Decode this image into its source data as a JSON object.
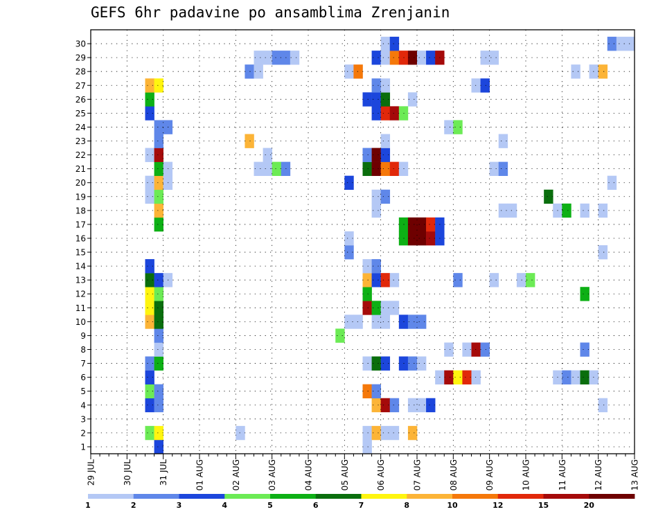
{
  "chart_data": {
    "type": "heatmap",
    "title": "GEFS 6hr padavine po ansamblima Zrenjanin",
    "xlabel": "",
    "ylabel": "",
    "y_categories": [
      "1",
      "2",
      "3",
      "4",
      "5",
      "6",
      "7",
      "8",
      "9",
      "10",
      "11",
      "12",
      "13",
      "14",
      "15",
      "16",
      "17",
      "18",
      "19",
      "20",
      "21",
      "22",
      "23",
      "24",
      "25",
      "26",
      "27",
      "28",
      "29",
      "30"
    ],
    "x_tick_labels": [
      "29 JUL",
      "30 JUL",
      "31 JUL",
      "01 AUG",
      "02 AUG",
      "03 AUG",
      "04 AUG",
      "05 AUG",
      "06 AUG",
      "07 AUG",
      "08 AUG",
      "09 AUG",
      "10 AUG",
      "11 AUG",
      "12 AUG",
      "13 AUG"
    ],
    "x_range_steps": [
      0,
      60
    ],
    "steps_per_day": 4,
    "grid": true,
    "legend": {
      "placement": "bottom",
      "labels": [
        "1",
        "2",
        "3",
        "4",
        "5",
        "6",
        "7",
        "8",
        "10",
        "12",
        "15",
        "20"
      ],
      "colors": [
        "#b4c8f5",
        "#5f87e9",
        "#1c46dc",
        "#6ceb55",
        "#0db015",
        "#0a6e0d",
        "#fff50f",
        "#fcb437",
        "#f5780a",
        "#e1280a",
        "#a50a0a",
        "#6e0000"
      ]
    },
    "cells": [
      {
        "m": 1,
        "s": 7,
        "c": 2
      },
      {
        "m": 1,
        "s": 30,
        "c": 0
      },
      {
        "m": 2,
        "s": 6,
        "c": 3
      },
      {
        "m": 2,
        "s": 7,
        "c": 6
      },
      {
        "m": 2,
        "s": 16,
        "c": 0
      },
      {
        "m": 2,
        "s": 30,
        "c": 0
      },
      {
        "m": 2,
        "s": 31,
        "c": 7
      },
      {
        "m": 2,
        "s": 32,
        "c": 0
      },
      {
        "m": 2,
        "s": 33,
        "c": 0
      },
      {
        "m": 2,
        "s": 35,
        "c": 7
      },
      {
        "m": 4,
        "s": 6,
        "c": 2
      },
      {
        "m": 4,
        "s": 7,
        "c": 1
      },
      {
        "m": 4,
        "s": 31,
        "c": 7
      },
      {
        "m": 4,
        "s": 32,
        "c": 10
      },
      {
        "m": 4,
        "s": 33,
        "c": 1
      },
      {
        "m": 4,
        "s": 35,
        "c": 0
      },
      {
        "m": 4,
        "s": 36,
        "c": 0
      },
      {
        "m": 4,
        "s": 37,
        "c": 2
      },
      {
        "m": 4,
        "s": 56,
        "c": 0
      },
      {
        "m": 5,
        "s": 6,
        "c": 3
      },
      {
        "m": 5,
        "s": 7,
        "c": 1
      },
      {
        "m": 5,
        "s": 30,
        "c": 8
      },
      {
        "m": 5,
        "s": 31,
        "c": 1
      },
      {
        "m": 6,
        "s": 6,
        "c": 2
      },
      {
        "m": 6,
        "s": 38,
        "c": 0
      },
      {
        "m": 6,
        "s": 39,
        "c": 10
      },
      {
        "m": 6,
        "s": 40,
        "c": 6
      },
      {
        "m": 6,
        "s": 41,
        "c": 9
      },
      {
        "m": 6,
        "s": 42,
        "c": 0
      },
      {
        "m": 6,
        "s": 51,
        "c": 0
      },
      {
        "m": 6,
        "s": 52,
        "c": 1
      },
      {
        "m": 6,
        "s": 53,
        "c": 0
      },
      {
        "m": 6,
        "s": 54,
        "c": 5
      },
      {
        "m": 6,
        "s": 55,
        "c": 0
      },
      {
        "m": 7,
        "s": 6,
        "c": 1
      },
      {
        "m": 7,
        "s": 7,
        "c": 4
      },
      {
        "m": 7,
        "s": 30,
        "c": 0
      },
      {
        "m": 7,
        "s": 31,
        "c": 5
      },
      {
        "m": 7,
        "s": 32,
        "c": 2
      },
      {
        "m": 7,
        "s": 34,
        "c": 2
      },
      {
        "m": 7,
        "s": 35,
        "c": 1
      },
      {
        "m": 7,
        "s": 36,
        "c": 0
      },
      {
        "m": 8,
        "s": 7,
        "c": 0
      },
      {
        "m": 8,
        "s": 39,
        "c": 0
      },
      {
        "m": 8,
        "s": 41,
        "c": 0
      },
      {
        "m": 8,
        "s": 42,
        "c": 10
      },
      {
        "m": 8,
        "s": 43,
        "c": 1
      },
      {
        "m": 8,
        "s": 54,
        "c": 1
      },
      {
        "m": 9,
        "s": 7,
        "c": 1
      },
      {
        "m": 9,
        "s": 27,
        "c": 3
      },
      {
        "m": 10,
        "s": 6,
        "c": 7
      },
      {
        "m": 10,
        "s": 7,
        "c": 5
      },
      {
        "m": 10,
        "s": 28,
        "c": 0
      },
      {
        "m": 10,
        "s": 29,
        "c": 0
      },
      {
        "m": 10,
        "s": 31,
        "c": 0
      },
      {
        "m": 10,
        "s": 32,
        "c": 0
      },
      {
        "m": 10,
        "s": 34,
        "c": 2
      },
      {
        "m": 10,
        "s": 35,
        "c": 1
      },
      {
        "m": 10,
        "s": 36,
        "c": 1
      },
      {
        "m": 11,
        "s": 6,
        "c": 6
      },
      {
        "m": 11,
        "s": 7,
        "c": 5
      },
      {
        "m": 11,
        "s": 30,
        "c": 10
      },
      {
        "m": 11,
        "s": 31,
        "c": 4
      },
      {
        "m": 11,
        "s": 32,
        "c": 0
      },
      {
        "m": 11,
        "s": 33,
        "c": 0
      },
      {
        "m": 12,
        "s": 6,
        "c": 6
      },
      {
        "m": 12,
        "s": 7,
        "c": 3
      },
      {
        "m": 12,
        "s": 30,
        "c": 4
      },
      {
        "m": 12,
        "s": 54,
        "c": 4
      },
      {
        "m": 13,
        "s": 6,
        "c": 5
      },
      {
        "m": 13,
        "s": 7,
        "c": 2
      },
      {
        "m": 13,
        "s": 8,
        "c": 0
      },
      {
        "m": 13,
        "s": 30,
        "c": 7
      },
      {
        "m": 13,
        "s": 31,
        "c": 2
      },
      {
        "m": 13,
        "s": 32,
        "c": 9
      },
      {
        "m": 13,
        "s": 33,
        "c": 0
      },
      {
        "m": 13,
        "s": 40,
        "c": 1
      },
      {
        "m": 13,
        "s": 44,
        "c": 0
      },
      {
        "m": 13,
        "s": 47,
        "c": 0
      },
      {
        "m": 13,
        "s": 48,
        "c": 3
      },
      {
        "m": 14,
        "s": 6,
        "c": 2
      },
      {
        "m": 14,
        "s": 30,
        "c": 0
      },
      {
        "m": 14,
        "s": 31,
        "c": 1
      },
      {
        "m": 15,
        "s": 28,
        "c": 1
      },
      {
        "m": 15,
        "s": 56,
        "c": 0
      },
      {
        "m": 16,
        "s": 28,
        "c": 0
      },
      {
        "m": 16,
        "s": 34,
        "c": 4
      },
      {
        "m": 16,
        "s": 35,
        "c": 11
      },
      {
        "m": 16,
        "s": 36,
        "c": 11
      },
      {
        "m": 16,
        "s": 37,
        "c": 10
      },
      {
        "m": 16,
        "s": 38,
        "c": 2
      },
      {
        "m": 17,
        "s": 7,
        "c": 4
      },
      {
        "m": 17,
        "s": 34,
        "c": 4
      },
      {
        "m": 17,
        "s": 35,
        "c": 11
      },
      {
        "m": 17,
        "s": 36,
        "c": 11
      },
      {
        "m": 17,
        "s": 37,
        "c": 9
      },
      {
        "m": 17,
        "s": 38,
        "c": 2
      },
      {
        "m": 18,
        "s": 7,
        "c": 7
      },
      {
        "m": 18,
        "s": 31,
        "c": 0
      },
      {
        "m": 18,
        "s": 45,
        "c": 0
      },
      {
        "m": 18,
        "s": 46,
        "c": 0
      },
      {
        "m": 18,
        "s": 51,
        "c": 0
      },
      {
        "m": 18,
        "s": 52,
        "c": 4
      },
      {
        "m": 18,
        "s": 54,
        "c": 0
      },
      {
        "m": 18,
        "s": 56,
        "c": 0
      },
      {
        "m": 19,
        "s": 6,
        "c": 0
      },
      {
        "m": 19,
        "s": 7,
        "c": 3
      },
      {
        "m": 19,
        "s": 31,
        "c": 0
      },
      {
        "m": 19,
        "s": 32,
        "c": 1
      },
      {
        "m": 19,
        "s": 50,
        "c": 5
      },
      {
        "m": 20,
        "s": 6,
        "c": 0
      },
      {
        "m": 20,
        "s": 7,
        "c": 7
      },
      {
        "m": 20,
        "s": 8,
        "c": 0
      },
      {
        "m": 20,
        "s": 28,
        "c": 2
      },
      {
        "m": 20,
        "s": 57,
        "c": 0
      },
      {
        "m": 21,
        "s": 7,
        "c": 4
      },
      {
        "m": 21,
        "s": 8,
        "c": 0
      },
      {
        "m": 21,
        "s": 18,
        "c": 0
      },
      {
        "m": 21,
        "s": 19,
        "c": 0
      },
      {
        "m": 21,
        "s": 20,
        "c": 3
      },
      {
        "m": 21,
        "s": 21,
        "c": 1
      },
      {
        "m": 21,
        "s": 30,
        "c": 5
      },
      {
        "m": 21,
        "s": 31,
        "c": 11
      },
      {
        "m": 21,
        "s": 32,
        "c": 8
      },
      {
        "m": 21,
        "s": 33,
        "c": 9
      },
      {
        "m": 21,
        "s": 34,
        "c": 0
      },
      {
        "m": 21,
        "s": 44,
        "c": 0
      },
      {
        "m": 21,
        "s": 45,
        "c": 1
      },
      {
        "m": 22,
        "s": 6,
        "c": 0
      },
      {
        "m": 22,
        "s": 7,
        "c": 10
      },
      {
        "m": 22,
        "s": 19,
        "c": 0
      },
      {
        "m": 22,
        "s": 30,
        "c": 1
      },
      {
        "m": 22,
        "s": 31,
        "c": 11
      },
      {
        "m": 22,
        "s": 32,
        "c": 2
      },
      {
        "m": 23,
        "s": 7,
        "c": 1
      },
      {
        "m": 23,
        "s": 17,
        "c": 7
      },
      {
        "m": 23,
        "s": 32,
        "c": 0
      },
      {
        "m": 23,
        "s": 45,
        "c": 0
      },
      {
        "m": 24,
        "s": 7,
        "c": 1
      },
      {
        "m": 24,
        "s": 8,
        "c": 1
      },
      {
        "m": 24,
        "s": 39,
        "c": 0
      },
      {
        "m": 24,
        "s": 40,
        "c": 3
      },
      {
        "m": 25,
        "s": 6,
        "c": 2
      },
      {
        "m": 25,
        "s": 31,
        "c": 2
      },
      {
        "m": 25,
        "s": 32,
        "c": 9
      },
      {
        "m": 25,
        "s": 33,
        "c": 10
      },
      {
        "m": 25,
        "s": 34,
        "c": 3
      },
      {
        "m": 26,
        "s": 6,
        "c": 4
      },
      {
        "m": 26,
        "s": 30,
        "c": 2
      },
      {
        "m": 26,
        "s": 31,
        "c": 2
      },
      {
        "m": 26,
        "s": 32,
        "c": 5
      },
      {
        "m": 26,
        "s": 35,
        "c": 0
      },
      {
        "m": 27,
        "s": 6,
        "c": 7
      },
      {
        "m": 27,
        "s": 7,
        "c": 6
      },
      {
        "m": 27,
        "s": 31,
        "c": 1
      },
      {
        "m": 27,
        "s": 32,
        "c": 0
      },
      {
        "m": 27,
        "s": 42,
        "c": 0
      },
      {
        "m": 27,
        "s": 43,
        "c": 2
      },
      {
        "m": 28,
        "s": 17,
        "c": 1
      },
      {
        "m": 28,
        "s": 18,
        "c": 0
      },
      {
        "m": 28,
        "s": 28,
        "c": 0
      },
      {
        "m": 28,
        "s": 29,
        "c": 8
      },
      {
        "m": 28,
        "s": 53,
        "c": 0
      },
      {
        "m": 28,
        "s": 55,
        "c": 0
      },
      {
        "m": 28,
        "s": 56,
        "c": 7
      },
      {
        "m": 29,
        "s": 18,
        "c": 0
      },
      {
        "m": 29,
        "s": 19,
        "c": 0
      },
      {
        "m": 29,
        "s": 20,
        "c": 1
      },
      {
        "m": 29,
        "s": 21,
        "c": 1
      },
      {
        "m": 29,
        "s": 22,
        "c": 0
      },
      {
        "m": 29,
        "s": 31,
        "c": 2
      },
      {
        "m": 29,
        "s": 32,
        "c": 0
      },
      {
        "m": 29,
        "s": 33,
        "c": 8
      },
      {
        "m": 29,
        "s": 34,
        "c": 9
      },
      {
        "m": 29,
        "s": 35,
        "c": 11
      },
      {
        "m": 29,
        "s": 36,
        "c": 0
      },
      {
        "m": 29,
        "s": 37,
        "c": 2
      },
      {
        "m": 29,
        "s": 38,
        "c": 10
      },
      {
        "m": 29,
        "s": 43,
        "c": 0
      },
      {
        "m": 29,
        "s": 44,
        "c": 0
      },
      {
        "m": 30,
        "s": 32,
        "c": 0
      },
      {
        "m": 30,
        "s": 33,
        "c": 2
      },
      {
        "m": 30,
        "s": 57,
        "c": 1
      },
      {
        "m": 30,
        "s": 58,
        "c": 0
      },
      {
        "m": 30,
        "s": 59,
        "c": 0
      }
    ]
  }
}
